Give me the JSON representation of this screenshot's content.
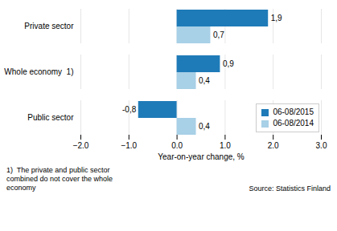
{
  "chart_data": {
    "type": "bar",
    "orientation": "horizontal",
    "categories": [
      "Public sector",
      "Whole economy  1)",
      "Private sector"
    ],
    "series": [
      {
        "name": "06-08/2015",
        "color": "#1F7BB8",
        "values": [
          -0.8,
          0.9,
          1.9
        ],
        "value_labels": [
          "-0,8",
          "0,9",
          "1,9"
        ]
      },
      {
        "name": "06-08/2014",
        "color": "#A8D0E6",
        "values": [
          0.4,
          0.4,
          0.7
        ],
        "value_labels": [
          "0,4",
          "0,4",
          "0,7"
        ]
      }
    ],
    "xlabel": "Year-on-year change, %",
    "xlim": [
      -2,
      3
    ],
    "xticks": [
      -2,
      -1,
      0,
      1,
      2,
      3
    ],
    "grid": true,
    "legend": "lower right",
    "data_labels": true,
    "footnote": [
      "1)  The private and public sector",
      "combined do not cover the whole",
      "economy"
    ],
    "source": "Source: Statistics Finland"
  }
}
